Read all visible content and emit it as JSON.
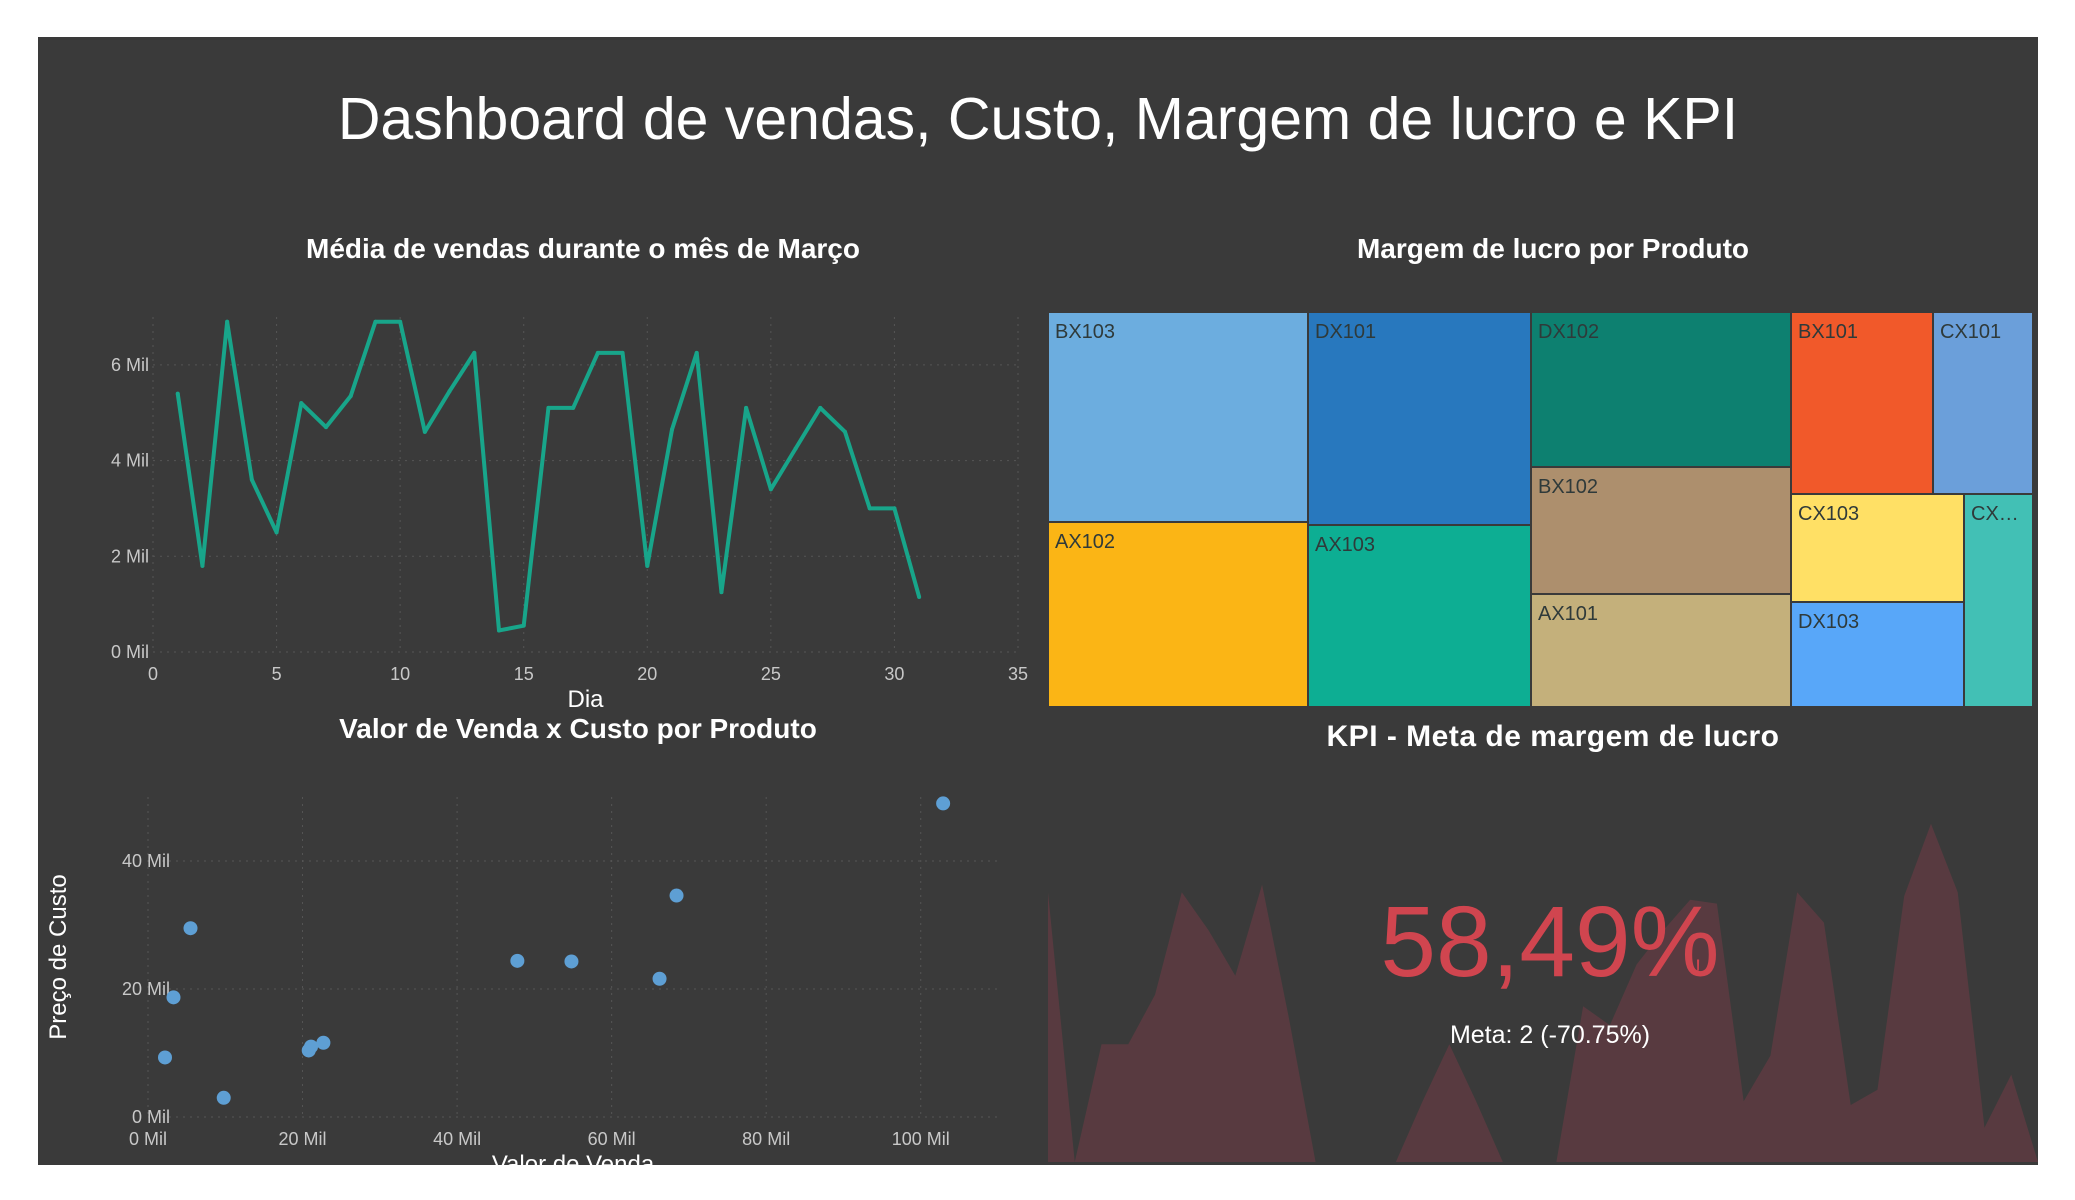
{
  "dashboard": {
    "title": "Dashboard de vendas, Custo, Margem de lucro e KPI"
  },
  "colors": {
    "background": "#3a3a3a",
    "line": "#18a58a",
    "scatter": "#5e9fd4",
    "kpi_value": "#d0454f",
    "kpi_area": "#5a3a40"
  },
  "chart_data": [
    {
      "id": "line",
      "type": "line",
      "title": "Média de vendas durante o mês de Março",
      "xlabel": "Dia",
      "ylabel": "",
      "xlim": [
        0,
        35
      ],
      "ylim": [
        0,
        7000
      ],
      "xticks": [
        "0",
        "5",
        "10",
        "15",
        "20",
        "25",
        "30",
        "35"
      ],
      "yticks": [
        "0 Mil",
        "2 Mil",
        "4 Mil",
        "6 Mil"
      ],
      "grid": true,
      "x": [
        1,
        2,
        3,
        4,
        5,
        6,
        7,
        8,
        9,
        10,
        11,
        12,
        13,
        14,
        15,
        16,
        17,
        18,
        19,
        20,
        21,
        22,
        23,
        24,
        25,
        26,
        27,
        28,
        29,
        30,
        31
      ],
      "values": [
        5400,
        1800,
        6900,
        3600,
        2500,
        5200,
        4700,
        5350,
        6900,
        6900,
        4600,
        5450,
        6250,
        450,
        550,
        5100,
        5100,
        6250,
        6250,
        1800,
        4650,
        6250,
        1250,
        5100,
        3400,
        4250,
        5100,
        4600,
        3000,
        3000,
        1150
      ]
    },
    {
      "id": "treemap",
      "type": "treemap",
      "title": "Margem de lucro por Produto",
      "items": [
        {
          "label": "BX103",
          "color": "#6caddf"
        },
        {
          "label": "AX102",
          "color": "#fbb515"
        },
        {
          "label": "DX101",
          "color": "#2878be"
        },
        {
          "label": "AX103",
          "color": "#0dae93"
        },
        {
          "label": "DX102",
          "color": "#0d8070"
        },
        {
          "label": "BX102",
          "color": "#ad8f6d"
        },
        {
          "label": "AX101",
          "color": "#c4b07b"
        },
        {
          "label": "BX101",
          "color": "#f1592a"
        },
        {
          "label": "CX101",
          "color": "#6b9fda"
        },
        {
          "label": "CX103",
          "color": "#ffe065"
        },
        {
          "label": "DX103",
          "color": "#58a7f9"
        },
        {
          "label": "CX…",
          "color": "#42c0b5"
        }
      ]
    },
    {
      "id": "scatter",
      "type": "scatter",
      "title": "Valor de Venda x Custo por Produto",
      "xlabel": "Valor de Venda",
      "ylabel": "Preço de Custo",
      "xlim": [
        0,
        110000
      ],
      "ylim": [
        0,
        50000
      ],
      "xticks": [
        "0 Mil",
        "20 Mil",
        "40 Mil",
        "60 Mil",
        "80 Mil",
        "100 Mil"
      ],
      "yticks": [
        "0 Mil",
        "20 Mil",
        "40 Mil"
      ],
      "grid": true,
      "points": [
        {
          "x": 2200,
          "y": 9300
        },
        {
          "x": 3300,
          "y": 18700
        },
        {
          "x": 5500,
          "y": 29500
        },
        {
          "x": 9800,
          "y": 3000
        },
        {
          "x": 20800,
          "y": 10400
        },
        {
          "x": 21100,
          "y": 11000
        },
        {
          "x": 22700,
          "y": 11600
        },
        {
          "x": 47800,
          "y": 24400
        },
        {
          "x": 54800,
          "y": 24300
        },
        {
          "x": 66200,
          "y": 21600
        },
        {
          "x": 68400,
          "y": 34600
        },
        {
          "x": 102900,
          "y": 49000
        }
      ]
    },
    {
      "id": "kpi",
      "type": "kpi",
      "title": "KPI - Meta de margem de lucro",
      "value": "58,49%",
      "indicator": "!",
      "goal_text": "Meta: 2 (-70.75%)",
      "trend": [
        0.7,
        0.0,
        0.31,
        0.31,
        0.44,
        0.72,
        0.61,
        0.49,
        0.73,
        0.38,
        0.0,
        0.0,
        0.0,
        0.0,
        0.0,
        0.0,
        0.0,
        0.0,
        0.0,
        0.0,
        0.0,
        0.0,
        0.0,
        0.0,
        0.0,
        0.0,
        0.0,
        0.0,
        0.0,
        0.0,
        0.0
      ]
    }
  ]
}
